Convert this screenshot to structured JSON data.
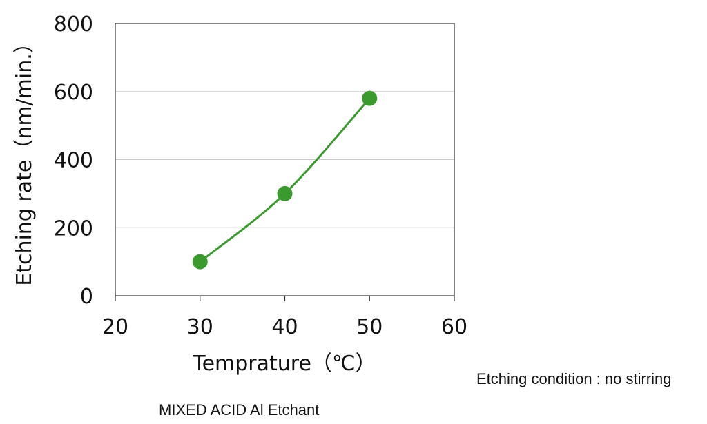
{
  "chart_data": {
    "type": "line",
    "xlabel": "Temprature（℃）",
    "ylabel": "Etching rate（nm/min.）",
    "xlim": [
      20,
      60
    ],
    "ylim": [
      0,
      800
    ],
    "xticks": [
      20,
      30,
      40,
      50,
      60
    ],
    "yticks": [
      0,
      200,
      400,
      600,
      800
    ],
    "grid": "horizontal",
    "legend": "none",
    "series": [
      {
        "x": [
          30,
          40,
          50
        ],
        "y": [
          100,
          300,
          580
        ],
        "color": "#3a9a2e",
        "marker": "circle"
      }
    ]
  },
  "notes": {
    "condition": "Etching condition : no stirring",
    "caption": "MIXED ACID Al Etchant"
  }
}
